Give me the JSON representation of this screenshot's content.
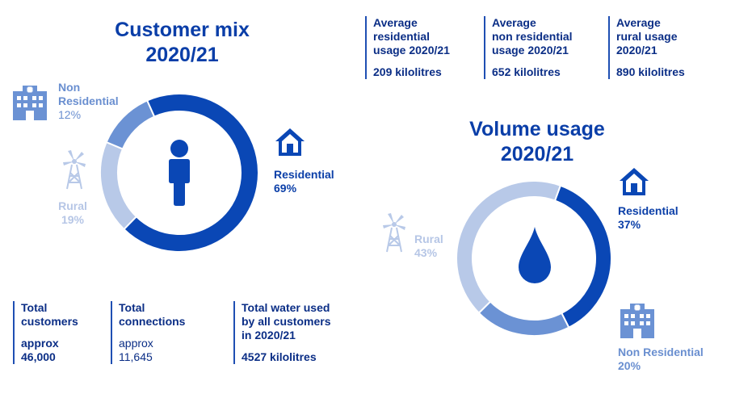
{
  "customer_mix": {
    "title_line1": "Customer mix",
    "title_line2": "2020/21",
    "labels": {
      "non_residential": {
        "line1": "Non",
        "line2": "Residential",
        "pct": "12%"
      },
      "rural": {
        "name": "Rural",
        "pct": "19%"
      },
      "residential": {
        "name": "Residential",
        "pct": "69%"
      }
    }
  },
  "volume_usage": {
    "title_line1": "Volume usage",
    "title_line2": "2020/21",
    "labels": {
      "residential": {
        "name": "Residential",
        "pct": "37%"
      },
      "rural": {
        "name": "Rural",
        "pct": "43%"
      },
      "non_residential": {
        "name": "Non Residential",
        "pct": "20%"
      }
    }
  },
  "averages": [
    {
      "line1": "Average",
      "line2": "residential",
      "line3": "usage 2020/21",
      "value": "209 kilolitres"
    },
    {
      "line1": "Average",
      "line2": "non residential",
      "line3": "usage 2020/21",
      "value": "652 kilolitres"
    },
    {
      "line1": "Average",
      "line2": "rural usage",
      "line3": "2020/21",
      "value": "890 kilolitres"
    }
  ],
  "totals": {
    "customers": {
      "line1": "Total",
      "line2": "customers",
      "value1": "approx",
      "value2": "46,000"
    },
    "connections": {
      "line1": "Total",
      "line2": "connections",
      "value1": "approx",
      "value2": "11,645"
    },
    "water": {
      "line1": "Total water used",
      "line2": "by all customers",
      "line3": "in 2020/21",
      "value": "4527 kilolitres"
    }
  },
  "colors": {
    "residential": "#0a47b5",
    "non_residential": "#6b92d4",
    "rural": "#b8c9e8",
    "title": "#0a3ea8"
  },
  "icons": {
    "person": "person-icon",
    "house": "house-icon",
    "building": "building-icon",
    "windmill": "windmill-icon",
    "drop": "water-drop-icon"
  },
  "chart_data": [
    {
      "type": "pie",
      "title": "Customer mix 2020/21",
      "categories": [
        "Residential",
        "Rural",
        "Non Residential"
      ],
      "values": [
        69,
        19,
        12
      ],
      "unit": "%"
    },
    {
      "type": "pie",
      "title": "Volume usage 2020/21",
      "categories": [
        "Residential",
        "Non Residential",
        "Rural"
      ],
      "values": [
        37,
        20,
        43
      ],
      "unit": "%"
    }
  ]
}
